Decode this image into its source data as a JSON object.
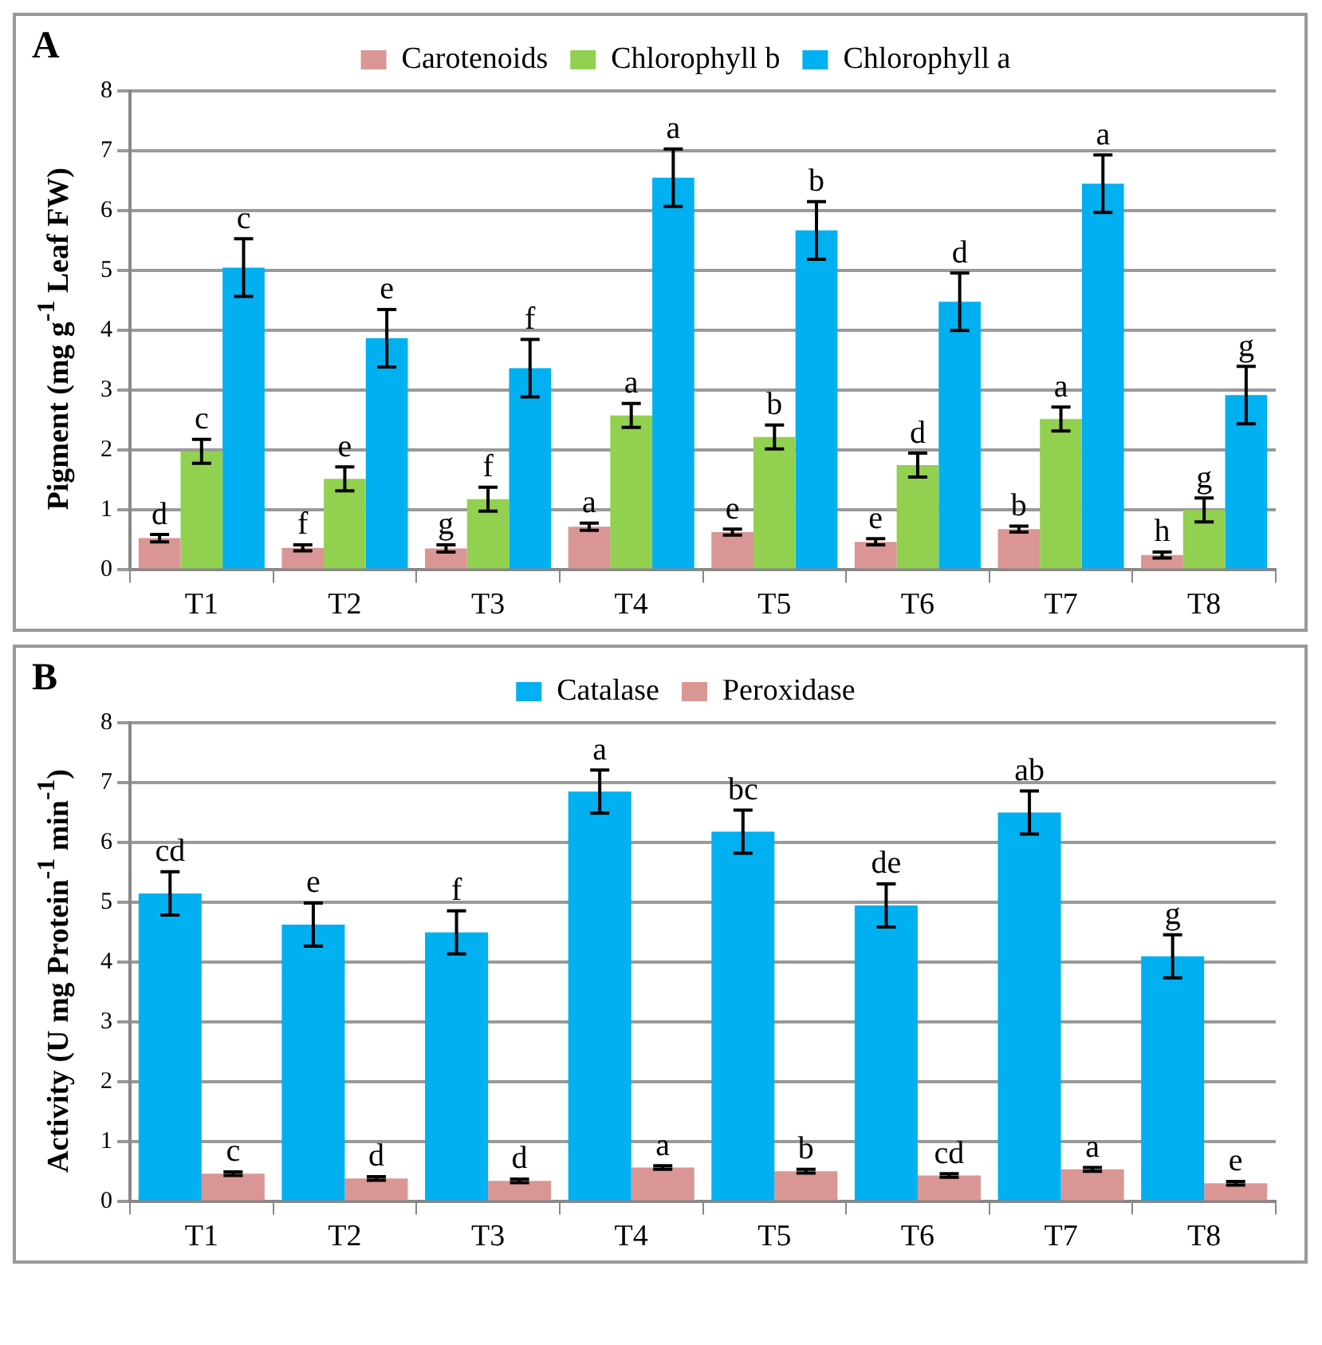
{
  "chart_data": [
    {
      "type": "bar",
      "title": "A",
      "ylabel": "Pigment (mg g$^{-1}$ Leaf FW)",
      "categories": [
        "T1",
        "T2",
        "T3",
        "T4",
        "T5",
        "T6",
        "T7",
        "T8"
      ],
      "ylim": [
        0,
        8
      ],
      "yticks": [
        0,
        1,
        2,
        3,
        4,
        5,
        6,
        7,
        8
      ],
      "grid": "y",
      "legend": "top",
      "series": [
        {
          "name": "Carotenoids",
          "color": "#d99694",
          "values": [
            0.53,
            0.37,
            0.36,
            0.72,
            0.63,
            0.47,
            0.68,
            0.25
          ],
          "errors": [
            0.06,
            0.05,
            0.06,
            0.06,
            0.05,
            0.05,
            0.05,
            0.05
          ],
          "value_labels": [
            "d",
            "f",
            "g",
            "a",
            "e",
            "e",
            "b",
            "h"
          ]
        },
        {
          "name": "Chlorophyll b",
          "color": "#92d050",
          "values": [
            1.98,
            1.52,
            1.18,
            2.58,
            2.22,
            1.75,
            2.52,
            1.0
          ],
          "errors": [
            0.2,
            0.2,
            0.2,
            0.2,
            0.2,
            0.2,
            0.2,
            0.2
          ],
          "value_labels": [
            "c",
            "e",
            "f",
            "a",
            "b",
            "d",
            "a",
            "g"
          ]
        },
        {
          "name": "Chlorophyll a",
          "color": "#00b0f0",
          "values": [
            5.05,
            3.87,
            3.37,
            6.55,
            5.67,
            4.48,
            6.45,
            2.92
          ],
          "errors": [
            0.48,
            0.48,
            0.48,
            0.48,
            0.48,
            0.48,
            0.48,
            0.48
          ],
          "value_labels": [
            "c",
            "e",
            "f",
            "a",
            "b",
            "d",
            "a",
            "g"
          ]
        }
      ]
    },
    {
      "type": "bar",
      "title": "B",
      "ylabel": "Activity (U mg Protein$^{-1}$ min$^{-1}$)",
      "categories": [
        "T1",
        "T2",
        "T3",
        "T4",
        "T5",
        "T6",
        "T7",
        "T8"
      ],
      "ylim": [
        0,
        8
      ],
      "yticks": [
        0,
        1,
        2,
        3,
        4,
        5,
        6,
        7,
        8
      ],
      "grid": "y",
      "legend": "top",
      "series": [
        {
          "name": "Catalase",
          "color": "#00b0f0",
          "values": [
            5.15,
            4.63,
            4.5,
            6.85,
            6.18,
            4.95,
            6.5,
            4.1
          ],
          "errors": [
            0.36,
            0.36,
            0.36,
            0.36,
            0.36,
            0.36,
            0.36,
            0.36
          ],
          "value_labels": [
            "cd",
            "e",
            "f",
            "a",
            "bc",
            "de",
            "ab",
            "g"
          ]
        },
        {
          "name": "Peroxidase",
          "color": "#d99694",
          "values": [
            0.47,
            0.39,
            0.35,
            0.57,
            0.51,
            0.44,
            0.54,
            0.31
          ],
          "errors": [
            0.03,
            0.03,
            0.03,
            0.03,
            0.03,
            0.03,
            0.03,
            0.03
          ],
          "value_labels": [
            "c",
            "d",
            "d",
            "a",
            "b",
            "cd",
            "a",
            "e"
          ]
        }
      ]
    }
  ]
}
